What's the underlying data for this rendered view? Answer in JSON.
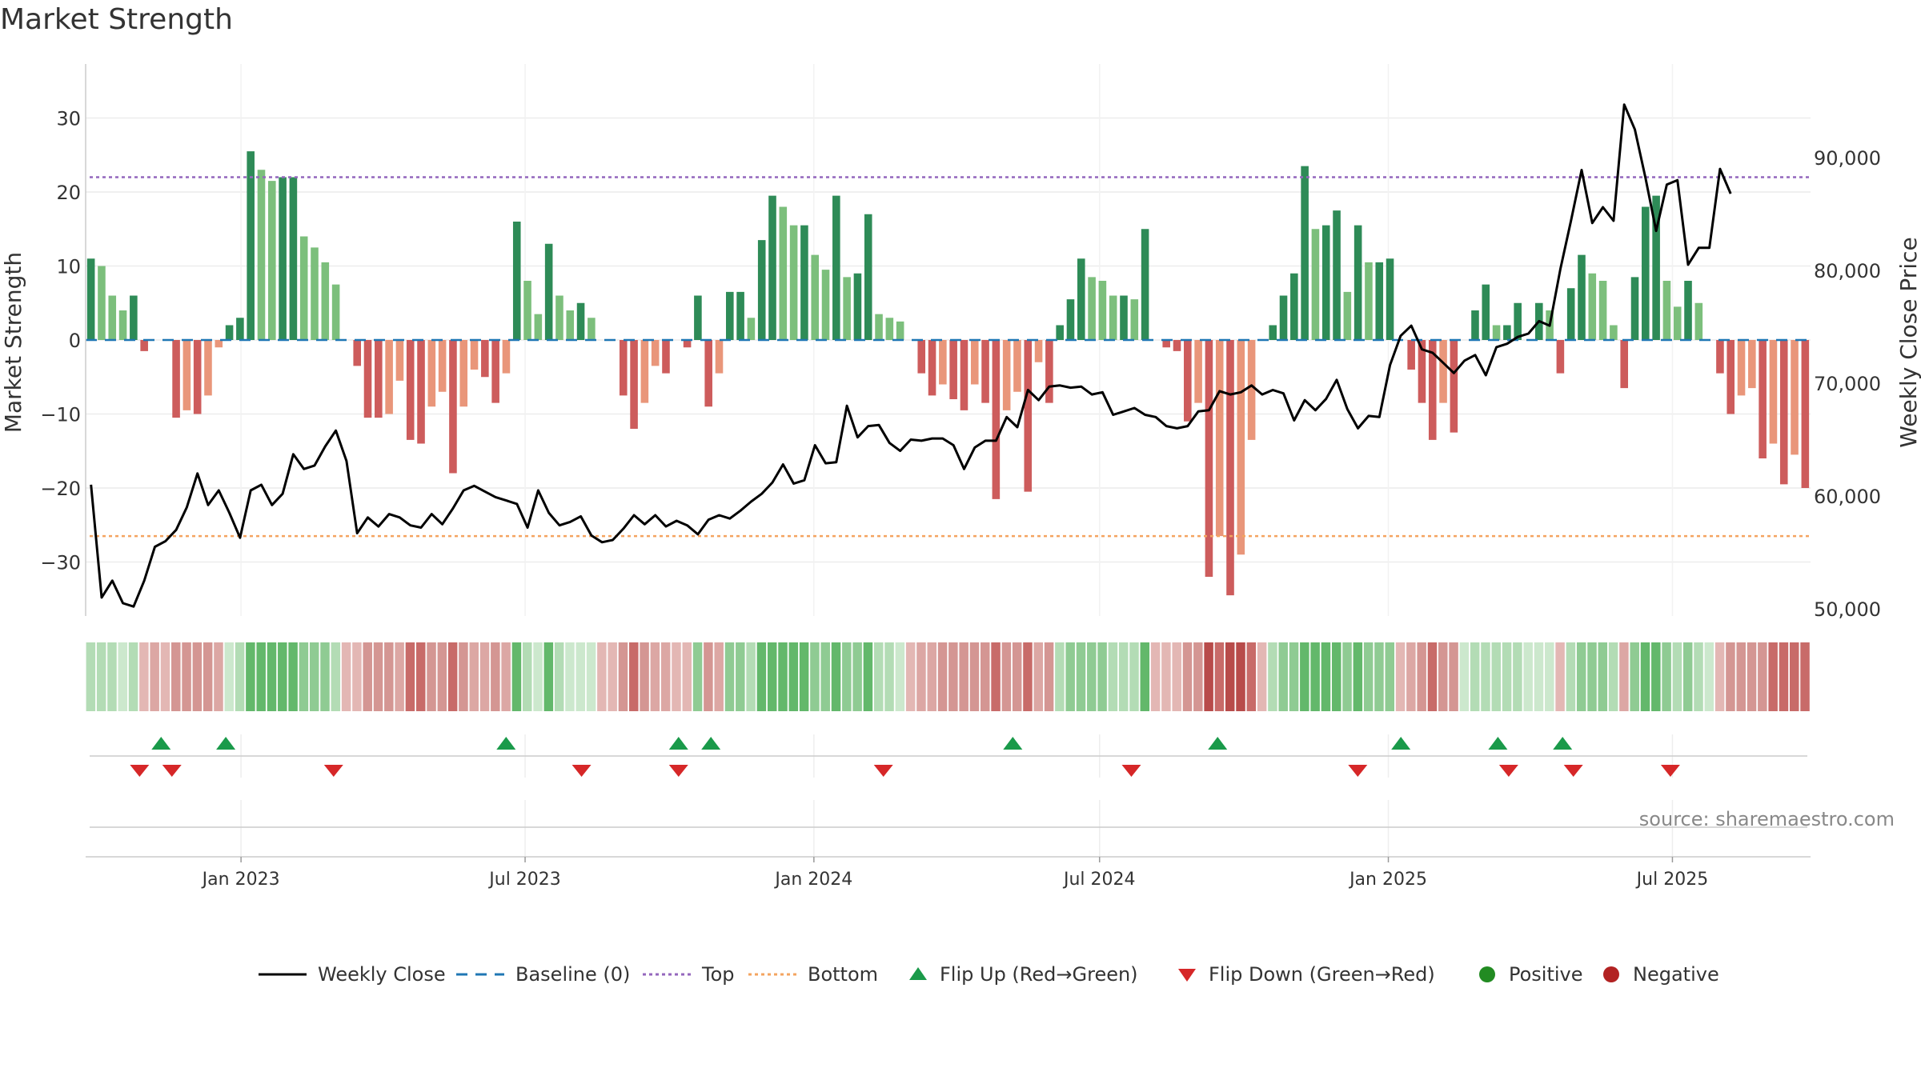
{
  "title": "Market Strength",
  "source": "source: sharemaestro.com",
  "colors": {
    "strong_green": "#2e8b57",
    "light_green": "#7cbf7c",
    "strong_red": "#cd5c5c",
    "light_red": "#e9967a",
    "close_line": "#000000",
    "baseline": "#1f77b4",
    "top": "#9467bd",
    "bottom": "#f4a460",
    "flip_up": "#1a9a4a",
    "flip_down": "#d62728",
    "positive": "#228b22",
    "negative": "#b22222"
  },
  "legend": [
    {
      "label": "Weekly Close",
      "type": "solid-line",
      "color": "#000000"
    },
    {
      "label": "Baseline (0)",
      "type": "dash-line",
      "color": "#1f77b4"
    },
    {
      "label": "Top",
      "type": "dot-line",
      "color": "#9467bd"
    },
    {
      "label": "Bottom",
      "type": "dot-line",
      "color": "#f4a460"
    },
    {
      "label": "Flip Up (Red→Green)",
      "type": "triangle-up",
      "color": "#1a9a4a"
    },
    {
      "label": "Flip Down (Green→Red)",
      "type": "triangle-down",
      "color": "#d62728"
    },
    {
      "label": "Positive",
      "type": "dot",
      "color": "#228b22"
    },
    {
      "label": "Negative",
      "type": "dot",
      "color": "#b22222"
    }
  ],
  "chart_data": {
    "type": "bar",
    "title": "Market Strength",
    "xlabel": "",
    "ylabel": "Market Strength",
    "y2label": "Weekly Close Price",
    "ylim": [
      -37,
      37
    ],
    "y2lim": [
      47000,
      94000
    ],
    "yticks": [
      30,
      20,
      10,
      0,
      -10,
      -20,
      -30
    ],
    "ytick_labels": [
      "30",
      "20",
      "10",
      "0",
      "−10",
      "−20",
      "−30"
    ],
    "y2ticks": [
      90000,
      80000,
      70000,
      60000,
      50000
    ],
    "y2tick_labels": [
      "90,000",
      "80,000",
      "70,000",
      "60,000",
      "50,000"
    ],
    "x_start": "2022-09-24",
    "x_end": "2025-09-27",
    "xticks": [
      "2023-01-01",
      "2023-07-01",
      "2024-01-01",
      "2024-07-01",
      "2025-01-01",
      "2025-07-01"
    ],
    "xtick_labels": [
      "Jan 2023",
      "Jul 2023",
      "Jan 2024",
      "Jul 2024",
      "Jan 2025",
      "Jul 2025"
    ],
    "top_level": 22,
    "bottom_level": -26.5,
    "baseline": 0,
    "grid": true,
    "legend_position": "bottom",
    "strength": [
      11,
      10,
      6,
      4,
      6,
      -1.5,
      0,
      0,
      -10.5,
      -9.5,
      -10,
      -7.5,
      -1,
      2,
      3,
      25.5,
      23,
      21.5,
      22,
      22,
      14,
      12.5,
      10.5,
      7.5,
      0,
      -3.5,
      -10.5,
      -10.5,
      -10,
      -5.5,
      -13.5,
      -14,
      -9,
      -7,
      -18,
      -9,
      -4,
      -5,
      -8.5,
      -4.5,
      16,
      8,
      3.5,
      13,
      6,
      4,
      5,
      3,
      0,
      0,
      -7.5,
      -12,
      -8.5,
      -3.5,
      -4.5,
      0,
      -1,
      6,
      -9,
      -4.5,
      6.5,
      6.5,
      3,
      13.5,
      19.5,
      18,
      15.5,
      15.5,
      11.5,
      9.5,
      19.5,
      8.5,
      9,
      17,
      3.5,
      3,
      2.5,
      0,
      -4.5,
      -7.5,
      -6,
      -8,
      -9.5,
      -6,
      -8.5,
      -21.5,
      -9.5,
      -7,
      -20.5,
      -3,
      -8.5,
      2,
      5.5,
      11,
      8.5,
      8,
      6,
      6,
      5.5,
      15,
      0,
      -1,
      -1.5,
      -11,
      -8.5,
      -32,
      -26.5,
      -34.5,
      -29,
      -13.5,
      0,
      2,
      6,
      9,
      23.5,
      15,
      15.5,
      17.5,
      6.5,
      15.5,
      10.5,
      10.5,
      11,
      0,
      -4,
      -8.5,
      -13.5,
      -8.5,
      -12.5,
      0,
      4,
      7.5,
      2,
      2,
      5,
      0,
      5,
      4,
      -4.5,
      7,
      11.5,
      9,
      8,
      2,
      -6.5,
      8.5,
      18,
      19.5,
      8,
      4.5,
      8,
      5,
      0,
      -4.5,
      -10,
      -7.5,
      -6.5,
      -16,
      -14,
      -19.5,
      -15.5,
      -20
    ],
    "close": [
      61000,
      51000,
      52500,
      50500,
      50200,
      52500,
      55500,
      56000,
      57000,
      59000,
      62000,
      59200,
      60500,
      58500,
      56300,
      60500,
      61000,
      59200,
      60200,
      63700,
      62400,
      62700,
      64400,
      65800,
      63100,
      56700,
      58100,
      57300,
      58400,
      58100,
      57400,
      57200,
      58400,
      57500,
      58900,
      60500,
      60900,
      60400,
      59900,
      59600,
      59300,
      57200,
      60500,
      58500,
      57400,
      57700,
      58200,
      56500,
      55900,
      56100,
      57100,
      58300,
      57500,
      58300,
      57300,
      57800,
      57400,
      56600,
      57900,
      58300,
      58000,
      58700,
      59500,
      60200,
      61200,
      62800,
      61100,
      61400,
      64500,
      62900,
      63000,
      68000,
      65200,
      66200,
      66300,
      64700,
      64000,
      65000,
      64900,
      65100,
      65100,
      64500,
      62400,
      64300,
      64900,
      64900,
      67000,
      66100,
      69400,
      68500,
      69700,
      69800,
      69600,
      69700,
      69000,
      69200,
      67200,
      67500,
      67800,
      67200,
      67000,
      66200,
      66000,
      66200,
      67500,
      67600,
      69300,
      69000,
      69200,
      69800,
      69000,
      69400,
      69100,
      66700,
      68500,
      67600,
      68600,
      70300,
      67700,
      66000,
      67100,
      67000,
      71600,
      74200,
      75100,
      73000,
      72700,
      71800,
      70900,
      72000,
      72500,
      70700,
      73200,
      73500,
      74100,
      74400,
      75500,
      75100,
      80100,
      84400,
      88900,
      84200,
      85600,
      84400,
      94700,
      92500,
      88200,
      83500,
      87600,
      88000,
      80500,
      82000,
      82000,
      89000,
      86800
    ],
    "heat": [
      2,
      2,
      2,
      3,
      2,
      4,
      5,
      4,
      6,
      6,
      6,
      6,
      5,
      3,
      2,
      0,
      0,
      0,
      0,
      0,
      1,
      1,
      1,
      2,
      4,
      4,
      6,
      6,
      6,
      5,
      7,
      7,
      6,
      6,
      7,
      6,
      5,
      5,
      6,
      5,
      0,
      2,
      3,
      0,
      2,
      3,
      3,
      3,
      4,
      4,
      6,
      7,
      6,
      5,
      5,
      4,
      4,
      1,
      6,
      5,
      1,
      1,
      2,
      0,
      0,
      0,
      0,
      0,
      1,
      1,
      0,
      1,
      1,
      0,
      2,
      2,
      3,
      4,
      5,
      5,
      6,
      6,
      6,
      6,
      6,
      7,
      6,
      6,
      7,
      5,
      6,
      2,
      1,
      1,
      1,
      1,
      2,
      2,
      2,
      0,
      4,
      4,
      4,
      6,
      6,
      8,
      7,
      8,
      8,
      7,
      4,
      2,
      1,
      1,
      0,
      0,
      0,
      0,
      1,
      0,
      1,
      1,
      1,
      4,
      5,
      6,
      7,
      6,
      6,
      3,
      2,
      2,
      2,
      2,
      2,
      3,
      3,
      3,
      4,
      2,
      1,
      1,
      1,
      2,
      5,
      1,
      0,
      0,
      1,
      2,
      1,
      2,
      3,
      4,
      6,
      6,
      6,
      6,
      7,
      7,
      7,
      7
    ],
    "flip_up": [
      3.5,
      6.5,
      19.5,
      27.5,
      29,
      43,
      52.5,
      61,
      65.5,
      68.5
    ],
    "flip_down": [
      2.5,
      4,
      11.5,
      23,
      27.5,
      37,
      48.5,
      59,
      66,
      69,
      73.5
    ]
  }
}
